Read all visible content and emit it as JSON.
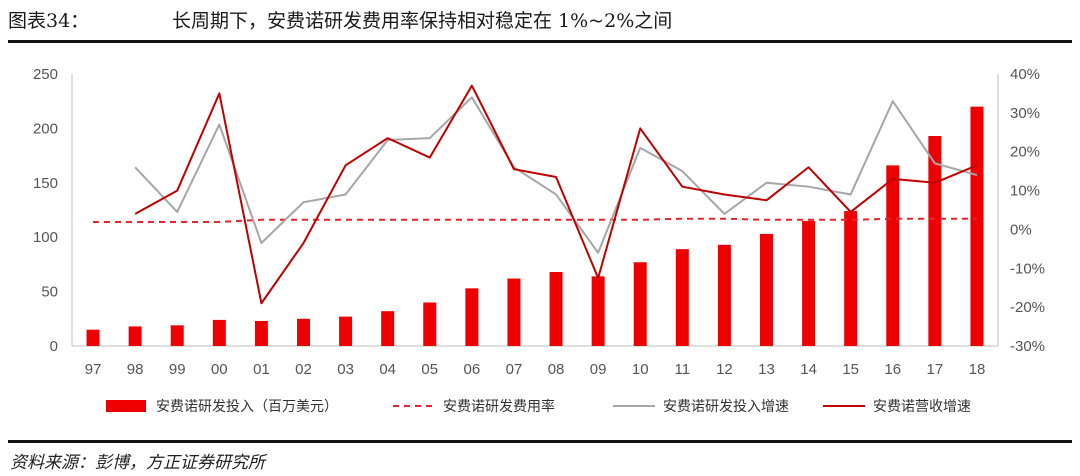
{
  "header": {
    "label": "图表34：",
    "title": "长周期下，安费诺研发费用率保持相对稳定在 1%~2%之间"
  },
  "source": "资料来源：彭博，方正证券研究所",
  "colors": {
    "bar": "#ee0000",
    "ratio_line": "#e8232b",
    "rd_growth": "#a6a6a6",
    "revenue_growth": "#c00000",
    "axis": "#bfbfbf",
    "tick": "#555555"
  },
  "chart_data": {
    "type": "bar",
    "title": "长周期下，安费诺研发费用率保持相对稳定在 1%~2%之间",
    "categories": [
      "97",
      "98",
      "99",
      "00",
      "01",
      "02",
      "03",
      "04",
      "05",
      "06",
      "07",
      "08",
      "09",
      "10",
      "11",
      "12",
      "13",
      "14",
      "15",
      "16",
      "17",
      "18"
    ],
    "left_axis": {
      "ylim": [
        0,
        250
      ],
      "ticks": [
        "0",
        "50",
        "100",
        "150",
        "200",
        "250"
      ],
      "tick_values": [
        0,
        50,
        100,
        150,
        200,
        250
      ]
    },
    "right_axis": {
      "ylim": [
        -30,
        40
      ],
      "ticks": [
        "-30%",
        "-20%",
        "-10%",
        "0%",
        "10%",
        "20%",
        "30%",
        "40%"
      ],
      "tick_values": [
        -30,
        -20,
        -10,
        0,
        10,
        20,
        30,
        40
      ]
    },
    "series": [
      {
        "name": "安费诺研发投入（百万美元）",
        "kind": "bar",
        "axis": "left",
        "values": [
          15,
          18,
          19,
          24,
          23,
          25,
          27,
          32,
          40,
          53,
          62,
          68,
          64,
          77,
          89,
          93,
          103,
          115,
          124,
          166,
          193,
          220
        ]
      },
      {
        "name": "安费诺研发费用率",
        "kind": "dashed-line",
        "axis": "left",
        "values": [
          114,
          114,
          114,
          114,
          116,
          116,
          116,
          116,
          116,
          116,
          116,
          116,
          116,
          116,
          117,
          117,
          116,
          116,
          116,
          117,
          117,
          117
        ]
      },
      {
        "name": "安费诺研发投入增速",
        "kind": "line",
        "axis": "right",
        "values": [
          null,
          16,
          4.5,
          27,
          -3.5,
          7,
          9,
          23,
          23.5,
          34,
          16,
          9,
          -6,
          21,
          15,
          4,
          12,
          11,
          9,
          33,
          17,
          14
        ]
      },
      {
        "name": "安费诺营收增速",
        "kind": "line",
        "axis": "right",
        "values": [
          null,
          4,
          10,
          35,
          -19,
          -3.5,
          16.5,
          23.5,
          18.5,
          37,
          15.5,
          13.5,
          -12.5,
          26,
          11,
          9,
          7.5,
          16,
          4.5,
          13,
          12,
          16.5
        ]
      }
    ],
    "legend": [
      "安费诺研发投入（百万美元）",
      "安费诺研发费用率",
      "安费诺研发投入增速",
      "安费诺营收增速"
    ],
    "legend_position": "bottom"
  }
}
